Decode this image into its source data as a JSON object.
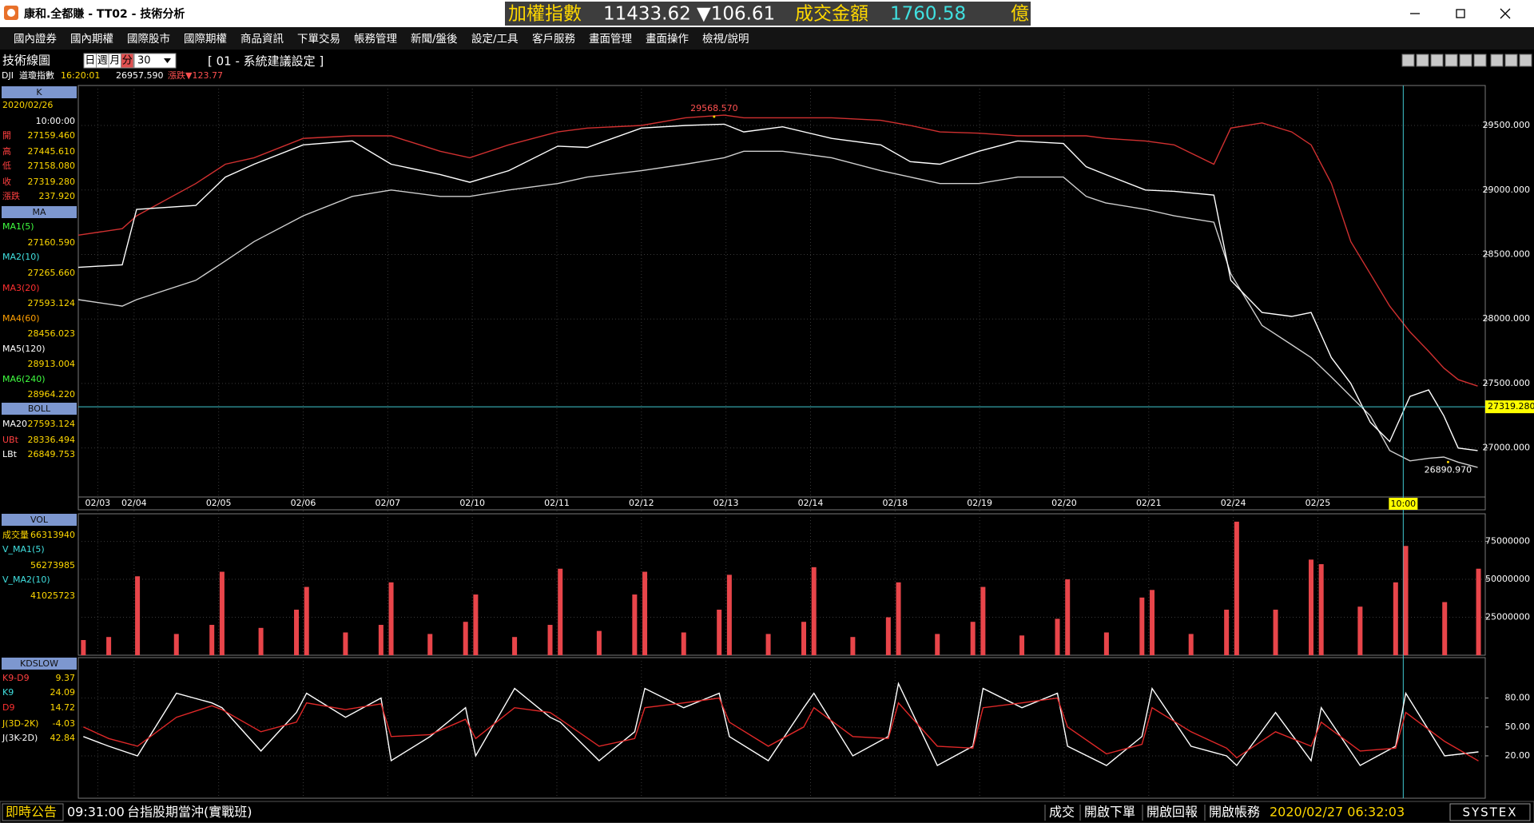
{
  "title_bar": {
    "title": "康和.全都賺 - TT02 - 技術分析",
    "ticker": {
      "name": "加權指數",
      "index": "11433.62",
      "change": "▼106.61",
      "turnover_label": "成交金額",
      "turnover": "1760.58",
      "unit": "億"
    }
  },
  "menu": [
    "國內證券",
    "國內期權",
    "國際股市",
    "國際期權",
    "商品資訊",
    "下單交易",
    "帳務管理",
    "新聞/盤後",
    "設定/工具",
    "客戶服務",
    "畫面管理",
    "畫面操作",
    "檢視/說明"
  ],
  "toolbar": {
    "label": "技術線圖",
    "periods": [
      "日",
      "週",
      "月",
      "分"
    ],
    "interval": "30",
    "setting": "[ 01 - 系統建議設定 ]"
  },
  "info": {
    "symbol": "DJI",
    "name": "道瓊指數",
    "time": "16:20:01",
    "price": "26957.590",
    "change": "漲跌▼123.77"
  },
  "side_panel": [
    {
      "header": "K",
      "date": "2020/02/26",
      "time": "10:00:00",
      "rows": [
        {
          "label": "開",
          "value": "27159.460"
        },
        {
          "label": "高",
          "value": "27445.610"
        },
        {
          "label": "低",
          "value": "27158.080"
        },
        {
          "label": "收",
          "value": "27319.280"
        },
        {
          "label": "漲跌",
          "value": "237.920"
        }
      ]
    },
    {
      "header": "MA",
      "rows": [
        {
          "label": "MA1(5)",
          "value": "27160.590"
        },
        {
          "label": "MA2(10)",
          "value": "27265.660"
        },
        {
          "label": "MA3(20)",
          "value": "27593.124"
        },
        {
          "label": "MA4(60)",
          "value": "28456.023"
        },
        {
          "label": "MA5(120)",
          "value": "28913.004"
        },
        {
          "label": "MA6(240)",
          "value": "28964.220"
        }
      ]
    },
    {
      "header": "BOLL",
      "rows": [
        {
          "label": "MA20",
          "value": "27593.124"
        },
        {
          "label": "UBt",
          "value": "28336.494"
        },
        {
          "label": "LBt",
          "value": "26849.753"
        }
      ]
    },
    {
      "header": "VOL",
      "rows": [
        {
          "label": "成交量",
          "value": "66313940"
        },
        {
          "label": "V_MA1(5)",
          "value": "56273985"
        },
        {
          "label": "V_MA2(10)",
          "value": "41025723"
        }
      ]
    },
    {
      "header": "KDSLOW",
      "rows": [
        {
          "label": "K9-D9",
          "value": "9.37"
        },
        {
          "label": "K9",
          "value": "24.09"
        },
        {
          "label": "D9",
          "value": "14.72"
        },
        {
          "label": "J(3D-2K)",
          "value": "-4.03"
        },
        {
          "label": "J(3K-2D)",
          "value": "42.84"
        }
      ]
    }
  ],
  "chart_data": [
    {
      "type": "line",
      "x": [
        0.34,
        0.86,
        1.03,
        1.73,
        2.08,
        2.42,
        3.0,
        3.58,
        4.04,
        4.62,
        4.97,
        5.43,
        6.01,
        6.36,
        7.0,
        7.52,
        7.98,
        8.21,
        8.67,
        9.25,
        9.83,
        10.18,
        10.53,
        10.99,
        11.45,
        11.99,
        12.26,
        12.49,
        12.96,
        13.3,
        13.77,
        13.97,
        14.34,
        14.69,
        14.92,
        15.16,
        15.39,
        15.62,
        15.85,
        16.09,
        16.31,
        16.49,
        16.66,
        16.89
      ],
      "series": [
        {
          "color": "#d03030",
          "values": [
            28650,
            28700,
            28800,
            29050,
            29200,
            29250,
            29400,
            29420,
            29420,
            29300,
            29250,
            29350,
            29450,
            29480,
            29500,
            29560,
            29580,
            29560,
            29560,
            29560,
            29540,
            29500,
            29450,
            29440,
            29420,
            29420,
            29420,
            29400,
            29380,
            29350,
            29200,
            29480,
            29520,
            29450,
            29350,
            29050,
            28600,
            28350,
            28100,
            27900,
            27750,
            27620,
            27530,
            27480
          ]
        },
        {
          "color": "#cfcfcf",
          "values": [
            28150,
            28100,
            28150,
            28300,
            28450,
            28600,
            28800,
            28950,
            29000,
            28950,
            28950,
            29000,
            29050,
            29100,
            29150,
            29200,
            29250,
            29300,
            29300,
            29250,
            29150,
            29100,
            29050,
            29050,
            29100,
            29100,
            28950,
            28900,
            28850,
            28800,
            28750,
            28350,
            27950,
            27800,
            27700,
            27550,
            27400,
            27250,
            26980,
            26900,
            26920,
            26930,
            26890,
            26850
          ]
        },
        {
          "color": "#ffffff",
          "values": [
            28400,
            28420,
            28850,
            28880,
            29100,
            29200,
            29350,
            29380,
            29200,
            29120,
            29060,
            29150,
            29340,
            29330,
            29480,
            29500,
            29510,
            29450,
            29490,
            29400,
            29350,
            29220,
            29200,
            29300,
            29380,
            29360,
            29180,
            29120,
            29000,
            28990,
            28960,
            28300,
            28050,
            28020,
            28050,
            27700,
            27500,
            27200,
            27050,
            27400,
            27450,
            27250,
            27000,
            26980
          ]
        }
      ],
      "xlim": [
        0.34,
        16.98
      ],
      "xticks": [
        {
          "value": 0.57,
          "label": "02/03"
        },
        {
          "value": 1,
          "label": "02/04"
        },
        {
          "value": 2,
          "label": "02/05"
        },
        {
          "value": 3,
          "label": "02/06"
        },
        {
          "value": 4,
          "label": "02/07"
        },
        {
          "value": 5,
          "label": "02/10"
        },
        {
          "value": 6,
          "label": "02/11"
        },
        {
          "value": 7,
          "label": "02/12"
        },
        {
          "value": 8,
          "label": "02/13"
        },
        {
          "value": 9,
          "label": "02/14"
        },
        {
          "value": 10,
          "label": "02/18"
        },
        {
          "value": 11,
          "label": "02/19"
        },
        {
          "value": 12,
          "label": "02/20"
        },
        {
          "value": 13,
          "label": "02/21"
        },
        {
          "value": 14,
          "label": "02/24"
        },
        {
          "value": 15,
          "label": "02/25"
        }
      ],
      "ylim": [
        26620,
        29810
      ],
      "yticks": [
        {
          "value": 27000,
          "label": "27000.000"
        },
        {
          "value": 27500,
          "label": "27500.000"
        },
        {
          "value": 28000,
          "label": "28000.000"
        },
        {
          "value": 28500,
          "label": "28500.000"
        },
        {
          "value": 29000,
          "label": "29000.000"
        },
        {
          "value": 29500,
          "label": "29500.000"
        }
      ],
      "grid": true,
      "annotations": [
        {
          "x": 7.86,
          "y": 29568.57,
          "label": "29568.570"
        },
        {
          "x": 16.54,
          "y": 26890.97,
          "label": "26890.970"
        }
      ],
      "last_price": {
        "value": 27319.28,
        "label": "27319.280"
      },
      "cursor": {
        "x": 16.01,
        "label": "10:00"
      }
    },
    {
      "type": "bar",
      "x": [
        0.4,
        0.7,
        1.04,
        1.5,
        1.92,
        2.04,
        2.5,
        2.92,
        3.04,
        3.5,
        3.92,
        4.04,
        4.5,
        4.92,
        5.04,
        5.5,
        5.92,
        6.04,
        6.5,
        6.92,
        7.04,
        7.5,
        7.92,
        8.04,
        8.5,
        8.92,
        9.04,
        9.5,
        9.92,
        10.04,
        10.5,
        10.92,
        11.04,
        11.5,
        11.92,
        12.04,
        12.5,
        12.92,
        13.04,
        13.5,
        13.92,
        14.04,
        14.5,
        14.92,
        15.04,
        15.5,
        15.92,
        16.04,
        16.5,
        16.9
      ],
      "values": [
        10000000,
        12000000,
        52000000,
        14000000,
        20000000,
        55000000,
        18000000,
        30000000,
        45000000,
        15000000,
        20000000,
        48000000,
        14000000,
        22000000,
        40000000,
        12000000,
        20000000,
        57000000,
        16000000,
        40000000,
        55000000,
        15000000,
        30000000,
        53000000,
        14000000,
        22000000,
        58000000,
        12000000,
        25000000,
        48000000,
        14000000,
        22000000,
        45000000,
        13000000,
        24000000,
        50000000,
        15000000,
        38000000,
        43000000,
        14000000,
        30000000,
        88000000,
        30000000,
        63000000,
        60000000,
        32000000,
        48000000,
        72000000,
        35000000,
        57000000
      ],
      "color": "#e8454a",
      "xlim": [
        0.34,
        16.98
      ],
      "ylim": [
        0,
        93200000
      ],
      "yticks": [
        25000000,
        50000000,
        75000000
      ]
    },
    {
      "type": "line",
      "x": [
        0.4,
        0.7,
        1.04,
        1.5,
        1.92,
        2.04,
        2.5,
        2.92,
        3.04,
        3.5,
        3.92,
        4.04,
        4.5,
        4.92,
        5.04,
        5.5,
        5.92,
        6.04,
        6.5,
        6.92,
        7.04,
        7.5,
        7.92,
        8.04,
        8.5,
        8.92,
        9.04,
        9.5,
        9.92,
        10.04,
        10.5,
        10.92,
        11.04,
        11.5,
        11.92,
        12.04,
        12.5,
        12.92,
        13.04,
        13.5,
        13.92,
        14.04,
        14.5,
        14.92,
        15.04,
        15.5,
        15.92,
        16.04,
        16.5,
        16.9
      ],
      "series": [
        {
          "color": "#ffffff",
          "values": [
            40,
            30,
            20,
            85,
            75,
            70,
            25,
            65,
            85,
            60,
            80,
            15,
            40,
            70,
            20,
            90,
            60,
            55,
            15,
            45,
            90,
            70,
            85,
            40,
            15,
            70,
            85,
            20,
            40,
            95,
            10,
            30,
            90,
            70,
            85,
            30,
            10,
            40,
            90,
            30,
            20,
            10,
            65,
            15,
            70,
            10,
            30,
            85,
            20,
            24.09
          ]
        },
        {
          "color": "#e02828",
          "values": [
            50,
            38,
            30,
            60,
            72,
            68,
            45,
            55,
            75,
            68,
            74,
            40,
            42,
            58,
            38,
            70,
            65,
            58,
            30,
            38,
            70,
            75,
            80,
            55,
            30,
            50,
            70,
            40,
            38,
            75,
            30,
            28,
            70,
            75,
            80,
            50,
            22,
            32,
            70,
            45,
            28,
            18,
            45,
            30,
            55,
            25,
            28,
            65,
            35,
            14.72
          ]
        }
      ],
      "xlim": [
        0.34,
        16.98
      ],
      "ylim": [
        -24,
        122
      ],
      "yticks": [
        {
          "value": 20,
          "label": "20.00"
        },
        {
          "value": 50,
          "label": "50.00"
        },
        {
          "value": 80,
          "label": "80.00"
        }
      ]
    }
  ],
  "status_bar": {
    "notice": "即時公告",
    "time": "09:31:00",
    "message": "台指股期當沖(實戰班)",
    "buttons": [
      "成交",
      "開啟下單",
      "開啟回報",
      "開啟帳務"
    ],
    "datetime": "2020/02/27 06:32:03",
    "brand": "SYSTEX"
  }
}
